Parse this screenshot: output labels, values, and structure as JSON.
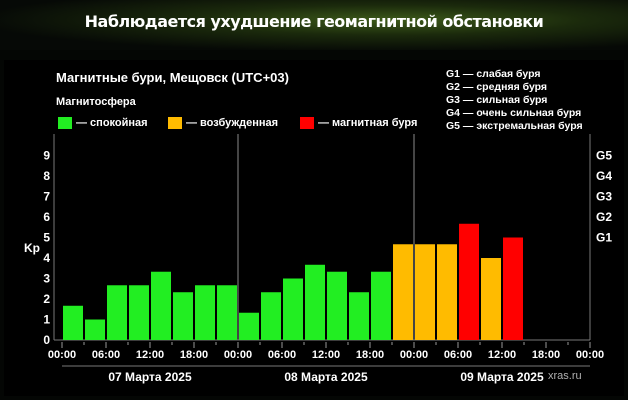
{
  "page": {
    "banner_title": "Наблюдается ухудшение геомагнитной обстановки",
    "watermark": "xras.ru",
    "footnote": ""
  },
  "legend": {
    "items": [
      {
        "label": "— спокойная",
        "color": "#22ee22"
      },
      {
        "label": "— возбужденная",
        "color": "#ffbb00"
      },
      {
        "label": "— магнитная буря",
        "color": "#ff0000"
      }
    ]
  },
  "g_scale": [
    "G1 — слабая буря",
    "G2 — средняя буря",
    "G3 — сильная буря",
    "G4 — очень сильная буря",
    "G5 — экстремальная буря"
  ],
  "chart_data": {
    "type": "bar",
    "title": "Магнитные бури, Мещовск (UTC+03)",
    "subtitle": "Магнитосфера",
    "ylabel": "Kp",
    "ylim": [
      0,
      9
    ],
    "yticks": [
      "0",
      "1",
      "2",
      "3",
      "4",
      "5",
      "6",
      "7",
      "8",
      "9"
    ],
    "right_ticks": [
      {
        "label": "G1",
        "kp": 5
      },
      {
        "label": "G2",
        "kp": 6
      },
      {
        "label": "G3",
        "kp": 7
      },
      {
        "label": "G4",
        "kp": 8
      },
      {
        "label": "G5",
        "kp": 9
      }
    ],
    "xtick_labels": [
      "00:00",
      "06:00",
      "12:00",
      "18:00",
      "00:00",
      "06:00",
      "12:00",
      "18:00",
      "00:00",
      "06:00",
      "12:00",
      "18:00",
      "00:00"
    ],
    "days": [
      "07 Марта 2025",
      "08 Марта 2025",
      "09 Марта 2025"
    ],
    "interval_hours": 3,
    "values": [
      1.67,
      1.0,
      2.67,
      2.67,
      3.33,
      2.33,
      2.67,
      2.67,
      1.33,
      2.33,
      3.0,
      3.67,
      3.33,
      2.33,
      3.33,
      4.67,
      4.67,
      4.67,
      5.67,
      4.0,
      5.0
    ],
    "status": [
      "quiet",
      "quiet",
      "quiet",
      "quiet",
      "quiet",
      "quiet",
      "quiet",
      "quiet",
      "quiet",
      "quiet",
      "quiet",
      "quiet",
      "quiet",
      "quiet",
      "quiet",
      "active",
      "active",
      "active",
      "storm",
      "active",
      "storm"
    ],
    "status_colors": {
      "quiet": "#22ee22",
      "active": "#ffbb00",
      "storm": "#ff0000"
    },
    "grid": false,
    "legend_position": "top-left"
  }
}
